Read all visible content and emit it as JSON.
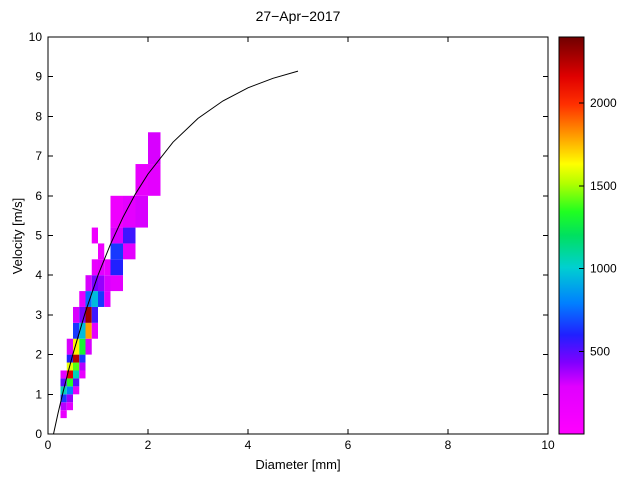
{
  "chart_data": {
    "type": "heatmap",
    "title": "27−Apr−2017",
    "xlabel": "Diameter [mm]",
    "ylabel": "Velocity [m/s]",
    "xlim": [
      0,
      10
    ],
    "ylim": [
      0,
      10
    ],
    "x_ticks": [
      0,
      2,
      4,
      6,
      8,
      10
    ],
    "y_ticks": [
      0,
      1,
      2,
      3,
      4,
      5,
      6,
      7,
      8,
      9,
      10
    ],
    "grid": false,
    "colorbar": {
      "min": 0,
      "max": 2400,
      "ticks": [
        500,
        1000,
        1500,
        2000
      ],
      "colormap_stops": [
        [
          0.0,
          "#ff00ff"
        ],
        [
          0.12,
          "#e000ff"
        ],
        [
          0.18,
          "#8000ff"
        ],
        [
          0.25,
          "#2020ff"
        ],
        [
          0.33,
          "#0080ff"
        ],
        [
          0.42,
          "#00d0d0"
        ],
        [
          0.5,
          "#00e060"
        ],
        [
          0.56,
          "#20ff20"
        ],
        [
          0.63,
          "#b0ff00"
        ],
        [
          0.68,
          "#ffff00"
        ],
        [
          0.76,
          "#ff9000"
        ],
        [
          0.83,
          "#ff3000"
        ],
        [
          0.9,
          "#e00000"
        ],
        [
          1.0,
          "#700000"
        ]
      ]
    },
    "curve": {
      "name": "terminal-velocity-curve",
      "color": "#000000",
      "points": [
        [
          0.11,
          0.0
        ],
        [
          0.2,
          0.52
        ],
        [
          0.3,
          1.05
        ],
        [
          0.4,
          1.55
        ],
        [
          0.5,
          2.02
        ],
        [
          0.75,
          3.08
        ],
        [
          1.0,
          4.0
        ],
        [
          1.25,
          4.78
        ],
        [
          1.5,
          5.46
        ],
        [
          1.75,
          6.05
        ],
        [
          2.0,
          6.55
        ],
        [
          2.5,
          7.35
        ],
        [
          3.0,
          7.95
        ],
        [
          3.5,
          8.39
        ],
        [
          4.0,
          8.72
        ],
        [
          4.5,
          8.96
        ],
        [
          5.0,
          9.14
        ]
      ]
    },
    "cells": [
      {
        "d": [
          0.25,
          0.375
        ],
        "v": [
          0.4,
          0.6
        ],
        "n": 200
      },
      {
        "d": [
          0.25,
          0.375
        ],
        "v": [
          0.6,
          0.8
        ],
        "n": 350
      },
      {
        "d": [
          0.25,
          0.375
        ],
        "v": [
          0.8,
          1.0
        ],
        "n": 650
      },
      {
        "d": [
          0.25,
          0.375
        ],
        "v": [
          1.0,
          1.2
        ],
        "n": 1050
      },
      {
        "d": [
          0.25,
          0.375
        ],
        "v": [
          1.2,
          1.4
        ],
        "n": 500
      },
      {
        "d": [
          0.25,
          0.375
        ],
        "v": [
          1.4,
          1.6
        ],
        "n": 250
      },
      {
        "d": [
          0.375,
          0.5
        ],
        "v": [
          0.6,
          0.8
        ],
        "n": 250
      },
      {
        "d": [
          0.375,
          0.5
        ],
        "v": [
          0.8,
          1.0
        ],
        "n": 400
      },
      {
        "d": [
          0.375,
          0.5
        ],
        "v": [
          1.0,
          1.2
        ],
        "n": 800
      },
      {
        "d": [
          0.375,
          0.5
        ],
        "v": [
          1.2,
          1.4
        ],
        "n": 1350
      },
      {
        "d": [
          0.375,
          0.5
        ],
        "v": [
          1.4,
          1.6
        ],
        "n": 2150
      },
      {
        "d": [
          0.375,
          0.5
        ],
        "v": [
          1.6,
          1.8
        ],
        "n": 1600
      },
      {
        "d": [
          0.375,
          0.5
        ],
        "v": [
          1.8,
          2.0
        ],
        "n": 600
      },
      {
        "d": [
          0.375,
          0.5
        ],
        "v": [
          2.0,
          2.4
        ],
        "n": 300
      },
      {
        "d": [
          0.5,
          0.625
        ],
        "v": [
          1.0,
          1.2
        ],
        "n": 250
      },
      {
        "d": [
          0.5,
          0.625
        ],
        "v": [
          1.2,
          1.4
        ],
        "n": 500
      },
      {
        "d": [
          0.5,
          0.625
        ],
        "v": [
          1.4,
          1.6
        ],
        "n": 1050
      },
      {
        "d": [
          0.5,
          0.625
        ],
        "v": [
          1.6,
          1.8
        ],
        "n": 1400
      },
      {
        "d": [
          0.5,
          0.625
        ],
        "v": [
          1.8,
          2.0
        ],
        "n": 2250
      },
      {
        "d": [
          0.5,
          0.625
        ],
        "v": [
          2.0,
          2.4
        ],
        "n": 1650
      },
      {
        "d": [
          0.5,
          0.625
        ],
        "v": [
          2.4,
          2.8
        ],
        "n": 650
      },
      {
        "d": [
          0.5,
          0.625
        ],
        "v": [
          2.8,
          3.2
        ],
        "n": 300
      },
      {
        "d": [
          0.625,
          0.75
        ],
        "v": [
          1.4,
          1.6
        ],
        "n": 200
      },
      {
        "d": [
          0.625,
          0.75
        ],
        "v": [
          1.6,
          1.8
        ],
        "n": 350
      },
      {
        "d": [
          0.625,
          0.75
        ],
        "v": [
          1.8,
          2.0
        ],
        "n": 650
      },
      {
        "d": [
          0.625,
          0.75
        ],
        "v": [
          2.0,
          2.4
        ],
        "n": 1300
      },
      {
        "d": [
          0.625,
          0.75
        ],
        "v": [
          2.4,
          2.8
        ],
        "n": 950
      },
      {
        "d": [
          0.625,
          0.75
        ],
        "v": [
          2.8,
          3.2
        ],
        "n": 450
      },
      {
        "d": [
          0.625,
          0.75
        ],
        "v": [
          3.2,
          3.6
        ],
        "n": 200
      },
      {
        "d": [
          0.75,
          0.875
        ],
        "v": [
          2.0,
          2.4
        ],
        "n": 300
      },
      {
        "d": [
          0.75,
          0.875
        ],
        "v": [
          2.4,
          2.8
        ],
        "n": 1800
      },
      {
        "d": [
          0.75,
          0.875
        ],
        "v": [
          2.8,
          3.2
        ],
        "n": 2300
      },
      {
        "d": [
          0.75,
          0.875
        ],
        "v": [
          3.2,
          3.6
        ],
        "n": 750
      },
      {
        "d": [
          0.75,
          0.875
        ],
        "v": [
          3.6,
          4.0
        ],
        "n": 300
      },
      {
        "d": [
          0.875,
          1.0
        ],
        "v": [
          2.4,
          2.8
        ],
        "n": 250
      },
      {
        "d": [
          0.875,
          1.0
        ],
        "v": [
          2.8,
          3.2
        ],
        "n": 550
      },
      {
        "d": [
          0.875,
          1.0
        ],
        "v": [
          3.2,
          3.6
        ],
        "n": 950
      },
      {
        "d": [
          0.875,
          1.0
        ],
        "v": [
          3.6,
          4.0
        ],
        "n": 450
      },
      {
        "d": [
          0.875,
          1.0
        ],
        "v": [
          4.0,
          4.4
        ],
        "n": 200
      },
      {
        "d": [
          0.875,
          1.0
        ],
        "v": [
          4.8,
          5.2
        ],
        "n": 150
      },
      {
        "d": [
          1.0,
          1.125
        ],
        "v": [
          3.2,
          3.6
        ],
        "n": 650
      },
      {
        "d": [
          1.0,
          1.125
        ],
        "v": [
          3.6,
          4.0
        ],
        "n": 400
      },
      {
        "d": [
          1.0,
          1.125
        ],
        "v": [
          4.0,
          4.4
        ],
        "n": 250
      },
      {
        "d": [
          1.0,
          1.125
        ],
        "v": [
          4.4,
          4.8
        ],
        "n": 150
      },
      {
        "d": [
          1.125,
          1.25
        ],
        "v": [
          3.2,
          3.6
        ],
        "n": 250
      },
      {
        "d": [
          1.125,
          1.25
        ],
        "v": [
          3.6,
          4.0
        ],
        "n": 300
      },
      {
        "d": [
          1.125,
          1.25
        ],
        "v": [
          4.0,
          4.4
        ],
        "n": 200
      },
      {
        "d": [
          1.25,
          1.5
        ],
        "v": [
          3.6,
          4.0
        ],
        "n": 250
      },
      {
        "d": [
          1.25,
          1.5
        ],
        "v": [
          4.0,
          4.4
        ],
        "n": 600
      },
      {
        "d": [
          1.25,
          1.5
        ],
        "v": [
          4.4,
          4.8
        ],
        "n": 650
      },
      {
        "d": [
          1.25,
          1.5
        ],
        "v": [
          4.8,
          5.2
        ],
        "n": 300
      },
      {
        "d": [
          1.25,
          1.5
        ],
        "v": [
          5.2,
          6.0
        ],
        "n": 150
      },
      {
        "d": [
          1.5,
          1.75
        ],
        "v": [
          4.4,
          4.8
        ],
        "n": 250
      },
      {
        "d": [
          1.5,
          1.75
        ],
        "v": [
          4.8,
          5.2
        ],
        "n": 550
      },
      {
        "d": [
          1.5,
          1.75
        ],
        "v": [
          5.2,
          6.0
        ],
        "n": 250
      },
      {
        "d": [
          1.75,
          2.0
        ],
        "v": [
          5.2,
          6.0
        ],
        "n": 300
      },
      {
        "d": [
          1.75,
          2.0
        ],
        "v": [
          6.0,
          6.8
        ],
        "n": 200
      },
      {
        "d": [
          2.0,
          2.25
        ],
        "v": [
          6.0,
          6.8
        ],
        "n": 250
      },
      {
        "d": [
          2.0,
          2.25
        ],
        "v": [
          6.8,
          7.6
        ],
        "n": 300
      }
    ]
  }
}
